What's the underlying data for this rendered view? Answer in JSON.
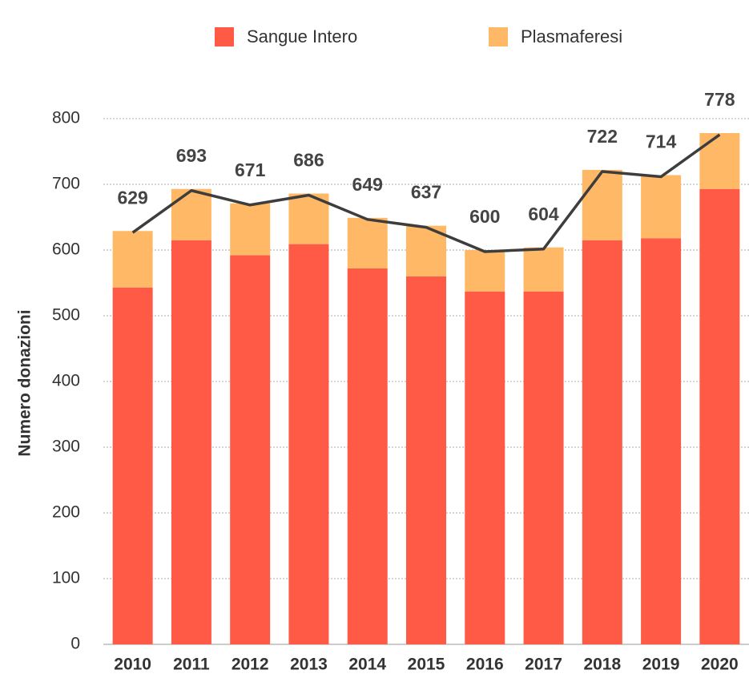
{
  "chart_data": {
    "type": "stacked-bar-line",
    "categories": [
      "2010",
      "2011",
      "2012",
      "2013",
      "2014",
      "2015",
      "2016",
      "2017",
      "2018",
      "2019",
      "2020"
    ],
    "series": [
      {
        "name": "Sangue Intero",
        "color": "#ff5a46",
        "values": [
          543,
          615,
          592,
          609,
          572,
          560,
          537,
          537,
          615,
          618,
          693
        ]
      },
      {
        "name": "Plasmaferesi",
        "color": "#ffb966",
        "values": [
          86,
          78,
          79,
          77,
          77,
          77,
          63,
          67,
          107,
          96,
          85
        ]
      }
    ],
    "totals": {
      "color": "#3d3d3d",
      "values": [
        629,
        693,
        671,
        686,
        649,
        637,
        600,
        604,
        722,
        714,
        778
      ]
    },
    "y_label": "Numero donazioni",
    "ylim": [
      0,
      800
    ],
    "yticks": [
      0,
      100,
      200,
      300,
      400,
      500,
      600,
      700,
      800
    ],
    "grid": true
  }
}
